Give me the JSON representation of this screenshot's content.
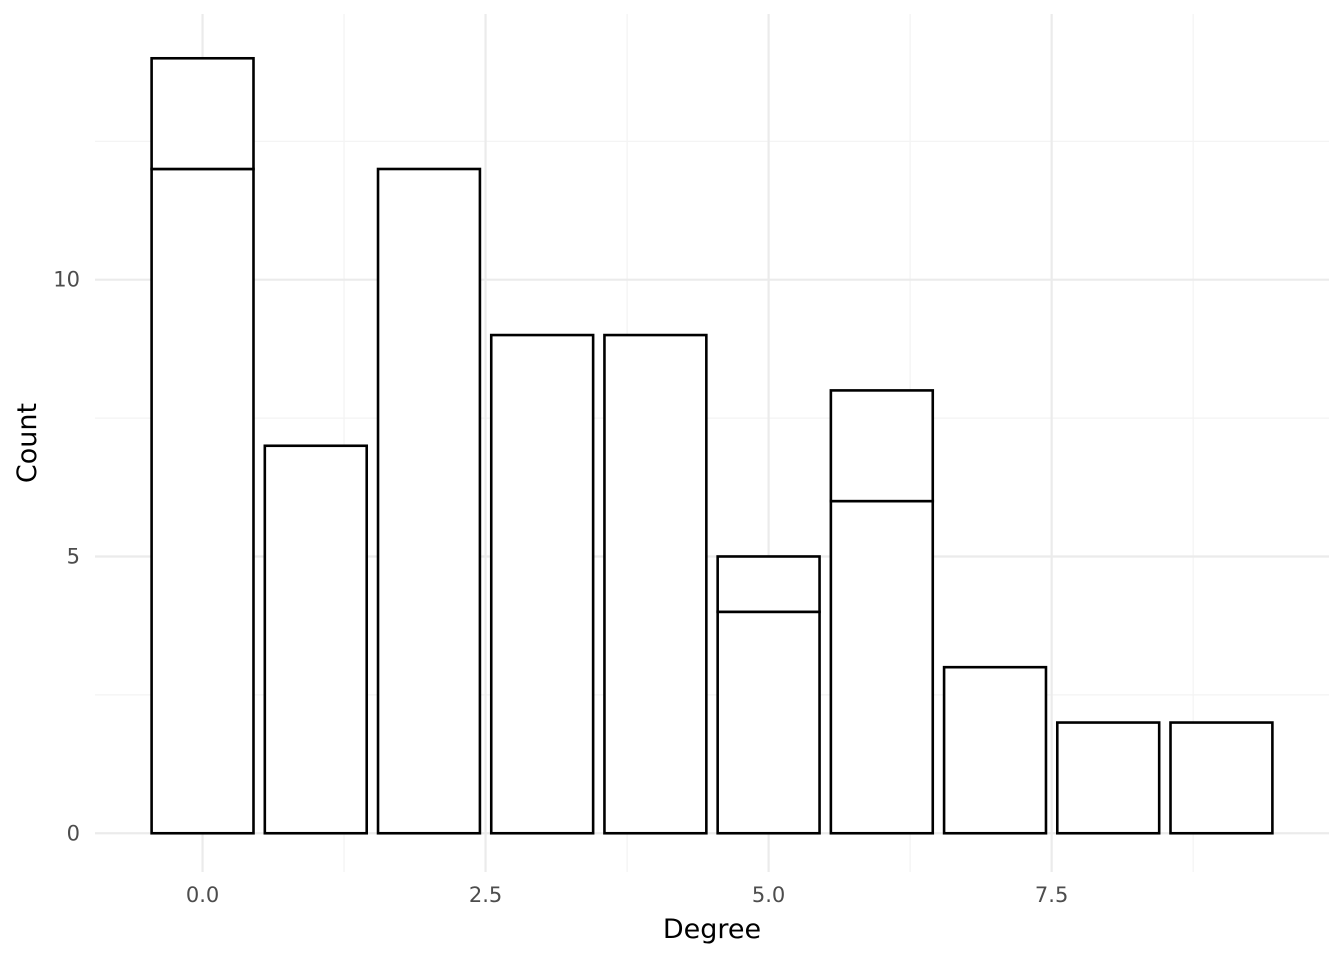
{
  "chart_data": {
    "type": "bar",
    "xlabel": "Degree",
    "ylabel": "Count",
    "xlim": [
      -0.95,
      9.95
    ],
    "ylim": [
      -0.7,
      14.8
    ],
    "x_ticks": [
      0.0,
      2.5,
      5.0,
      7.5
    ],
    "x_tick_labels": [
      "0.0",
      "2.5",
      "5.0",
      "7.5"
    ],
    "y_ticks": [
      0,
      5,
      10
    ],
    "y_tick_labels": [
      "0",
      "5",
      "10"
    ],
    "grid": true,
    "legend": "none",
    "colors": {
      "bar_fill": "#ffffff",
      "bar_stroke": "#000000",
      "grid_major": "#ebebeb",
      "grid_minor": "#f3f3f3"
    },
    "categories": [
      0,
      1,
      2,
      3,
      4,
      5,
      6,
      7,
      8,
      9
    ],
    "series": [
      {
        "values": [
          12,
          7,
          12,
          9,
          9,
          4,
          6,
          3,
          2,
          2
        ]
      },
      {
        "values": [
          2,
          0,
          0,
          0,
          0,
          1,
          2,
          0,
          0,
          0
        ]
      }
    ]
  }
}
